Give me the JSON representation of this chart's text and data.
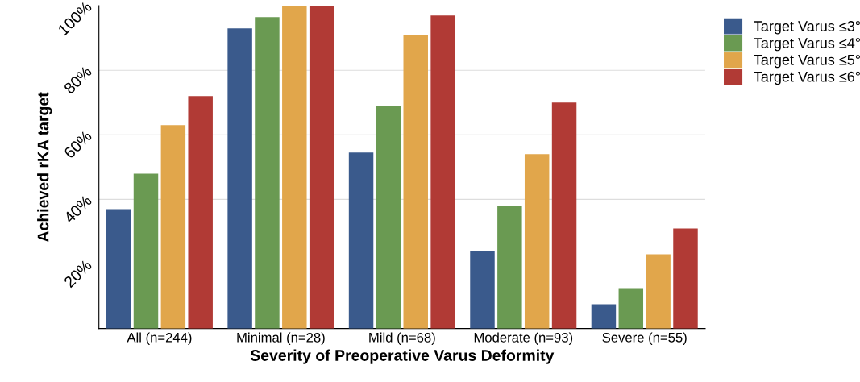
{
  "chart_data": {
    "type": "bar",
    "xlabel": "Severity of Preoperative Varus Deformity",
    "ylabel": "Achieved rKA target",
    "categories": [
      "All (n=244)",
      "Minimal (n=28)",
      "Mild (n=68)",
      "Moderate (n=93)",
      "Severe (n=55)"
    ],
    "series": [
      {
        "name": "Target Varus ≤3°",
        "color": "#3a5a8c",
        "values": [
          37,
          93,
          54.5,
          24,
          7.5
        ]
      },
      {
        "name": "Target Varus ≤4°",
        "color": "#6a9a52",
        "values": [
          48,
          96.5,
          69,
          38,
          12.5
        ]
      },
      {
        "name": "Target Varus ≤5°",
        "color": "#e1a64b",
        "values": [
          63,
          100,
          91,
          54,
          23
        ]
      },
      {
        "name": "Target Varus ≤6°",
        "color": "#b13a35",
        "values": [
          72,
          100,
          97,
          70,
          31
        ]
      }
    ],
    "ylim": [
      0,
      100
    ],
    "yticks": [
      {
        "value": 20,
        "label": "20%"
      },
      {
        "value": 40,
        "label": "40%"
      },
      {
        "value": 60,
        "label": "60%"
      },
      {
        "value": 80,
        "label": "80%"
      },
      {
        "value": 100,
        "label": "100%"
      }
    ],
    "grid": "y",
    "legend": "top right"
  }
}
